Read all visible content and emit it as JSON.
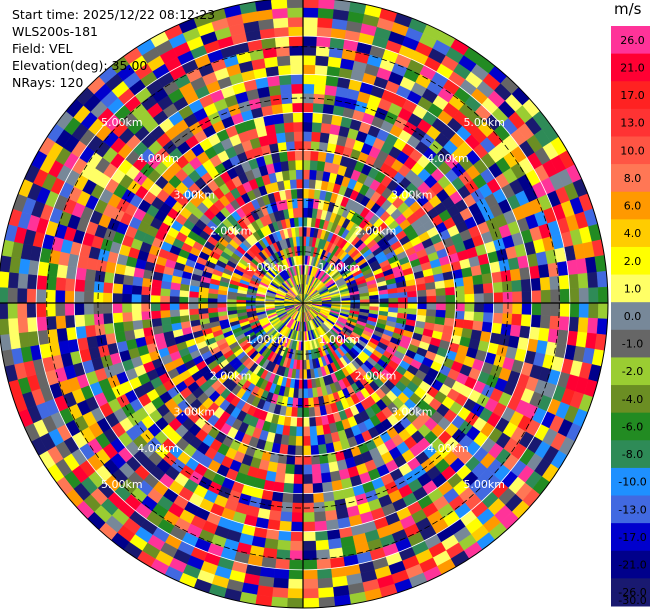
{
  "header": {
    "start_time": "Start time: 2025/12/22 08:12:23",
    "instrument": "WLS200s-181",
    "field": "Field: VEL",
    "elevation": "Elevation(deg): 35.00",
    "nrays": "NRays: 120"
  },
  "colorbar": {
    "unit": "m/s",
    "levels": [
      {
        "label": "26.0",
        "color": "#ff3399"
      },
      {
        "label": "21.0",
        "color": "#ff0033"
      },
      {
        "label": "17.0",
        "color": "#ff2222"
      },
      {
        "label": "13.0",
        "color": "#ff3333"
      },
      {
        "label": "10.0",
        "color": "#ff5544"
      },
      {
        "label": "8.0",
        "color": "#ff7755"
      },
      {
        "label": "6.0",
        "color": "#ff9900"
      },
      {
        "label": "4.0",
        "color": "#ffcc00"
      },
      {
        "label": "2.0",
        "color": "#ffff00"
      },
      {
        "label": "1.0",
        "color": "#ffff66"
      },
      {
        "label": "0.0",
        "color": "#778899"
      },
      {
        "label": "-1.0",
        "color": "#666666"
      },
      {
        "label": "-2.0",
        "color": "#9acd32"
      },
      {
        "label": "-4.0",
        "color": "#6b8e23"
      },
      {
        "label": "-6.0",
        "color": "#228b22"
      },
      {
        "label": "-8.0",
        "color": "#2e8b57"
      },
      {
        "label": "-10.0",
        "color": "#1e90ff"
      },
      {
        "label": "-13.0",
        "color": "#4169e1"
      },
      {
        "label": "-17.0",
        "color": "#0000cd"
      },
      {
        "label": "-21.0",
        "color": "#00008b"
      },
      {
        "label": "-26.0",
        "color": "#191970"
      },
      {
        "label": "-30.0",
        "color": "#191970"
      }
    ]
  },
  "rings": [
    {
      "label": "1.00km"
    },
    {
      "label": "2.00km"
    },
    {
      "label": "3.00km"
    },
    {
      "label": "4.00km"
    },
    {
      "label": "5.00km"
    }
  ],
  "scan": {
    "nrays": 120,
    "max_range_km": 5.95
  }
}
